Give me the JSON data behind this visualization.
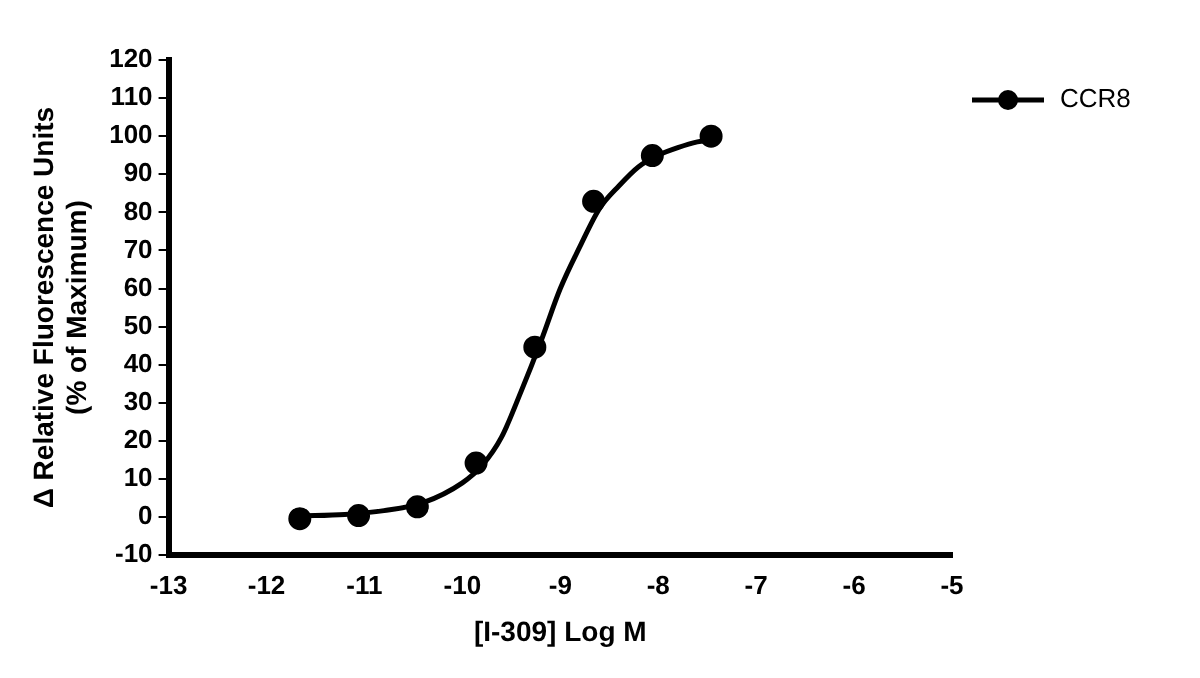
{
  "chart_data": {
    "type": "scatter",
    "xlabel": "[I-309] Log M",
    "ylabel": "Δ Relative Fluorescence Units\n(% of Maximum)",
    "xlim": [
      -13,
      -5
    ],
    "xticks": [
      -13,
      -12,
      -11,
      -10,
      -9,
      -8,
      -7,
      -6,
      -5
    ],
    "ylim": [
      -10,
      120
    ],
    "yticks": [
      -10,
      0,
      10,
      20,
      30,
      40,
      50,
      60,
      70,
      80,
      90,
      100,
      110,
      120
    ],
    "grid": false,
    "legend": "top right",
    "marker": "circle",
    "series": [
      {
        "name": "CCR8",
        "color": "#000000",
        "x": [
          -11.66,
          -11.06,
          -10.46,
          -9.86,
          -9.26,
          -8.66,
          -8.06,
          -7.46
        ],
        "values": [
          -0.4,
          0.4,
          2.7,
          14.2,
          44.6,
          82.9,
          94.9,
          100
        ]
      },
      {
        "type": "line",
        "color": "#000000",
        "marker": "none",
        "x": [
          -11.66,
          -11.2,
          -10.8,
          -10.4,
          -10.0,
          -9.8,
          -9.6,
          -9.4,
          -9.2,
          -9.0,
          -8.8,
          -8.6,
          -8.4,
          -8.2,
          -8.0,
          -7.8,
          -7.6,
          -7.46
        ],
        "values": [
          0.3,
          0.7,
          1.7,
          3.8,
          9,
          13.5,
          21,
          33,
          46,
          60,
          71,
          81,
          87,
          92,
          95,
          97,
          98.5,
          99
        ]
      }
    ]
  }
}
